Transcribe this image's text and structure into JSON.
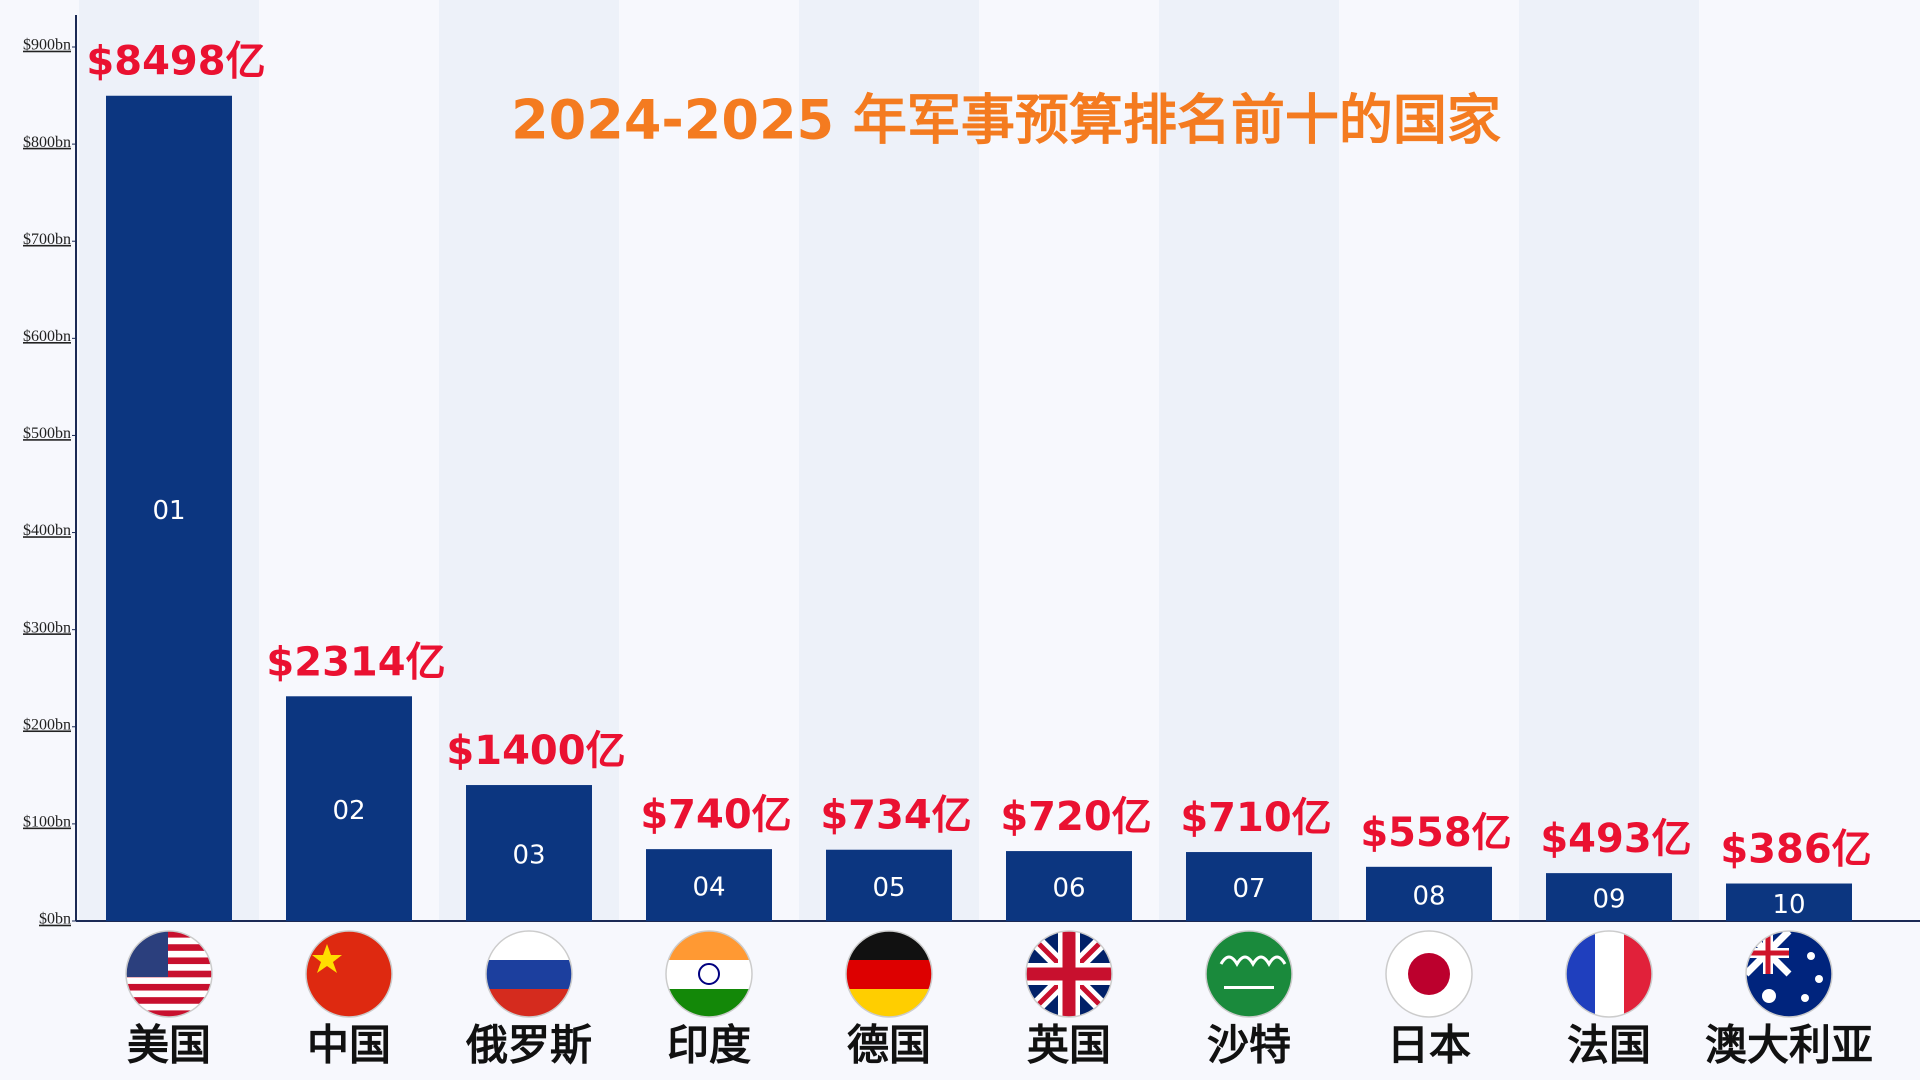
{
  "chart_data": {
    "type": "bar",
    "title": "2024-2025 年军事预算排名前十的国家",
    "categories": [
      "美国",
      "中国",
      "俄罗斯",
      "印度",
      "德国",
      "英国",
      "沙特",
      "日本",
      "法国",
      "澳大利亚"
    ],
    "values": [
      849.8,
      231.4,
      140.0,
      74.0,
      73.4,
      72.0,
      71.0,
      55.8,
      49.3,
      38.6
    ],
    "value_labels": [
      "$8498亿",
      "$2314亿",
      "$1400亿",
      "$740亿",
      "$734亿",
      "$720亿",
      "$710亿",
      "$558亿",
      "$493亿",
      "$386亿"
    ],
    "bar_labels": [
      "01",
      "02",
      "03",
      "04",
      "05",
      "06",
      "07",
      "08",
      "09",
      "10"
    ],
    "color": "#0c3680",
    "ylim": [
      0,
      900
    ],
    "yticks": [
      {
        "value": 0,
        "label": "$0bn"
      },
      {
        "value": 100,
        "label": "$100bn"
      },
      {
        "value": 200,
        "label": "$200bn"
      },
      {
        "value": 300,
        "label": "$300bn"
      },
      {
        "value": 400,
        "label": "$400bn"
      },
      {
        "value": 500,
        "label": "$500bn"
      },
      {
        "value": 600,
        "label": "$600bn"
      },
      {
        "value": 700,
        "label": "$700bn"
      },
      {
        "value": 800,
        "label": "$800bn"
      },
      {
        "value": 900,
        "label": "$900bn"
      }
    ]
  }
}
